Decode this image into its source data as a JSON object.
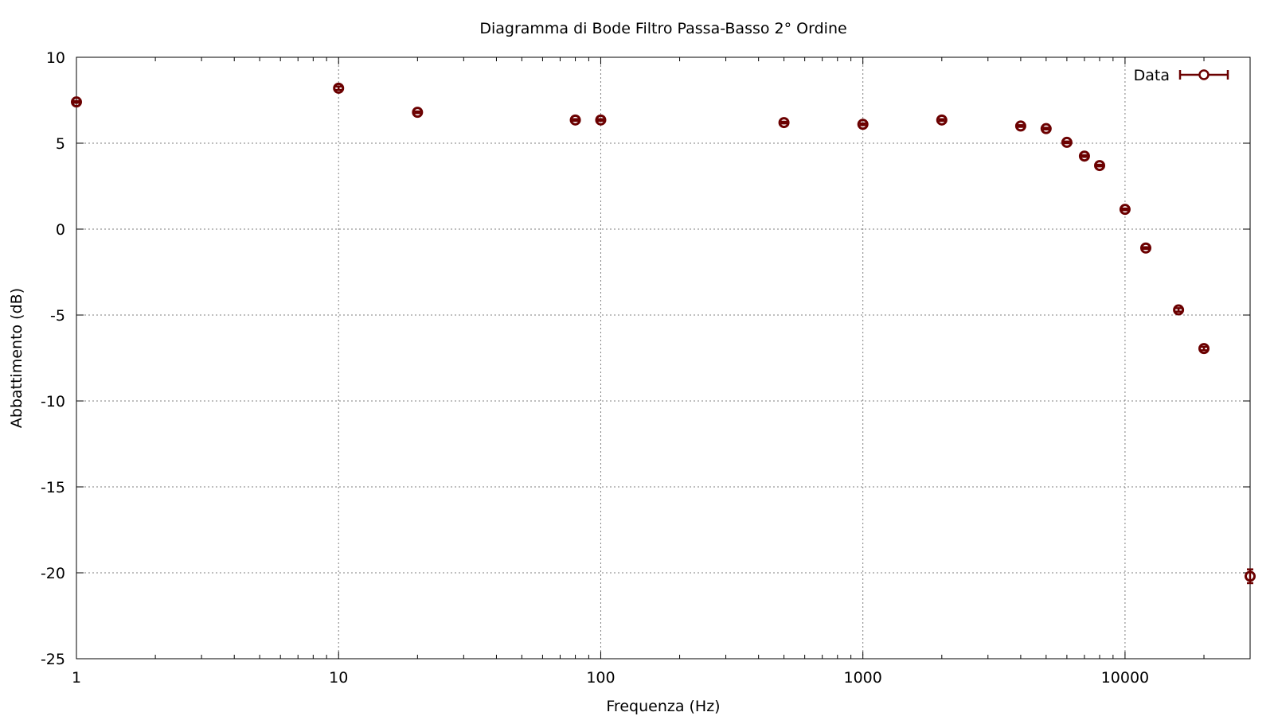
{
  "chart_data": {
    "type": "scatter",
    "title": "Diagramma di Bode Filtro Passa-Basso 2° Ordine",
    "xlabel": "Frequenza (Hz)",
    "ylabel": "Abbattimento (dB)",
    "xscale": "log",
    "xlim": [
      1,
      30000
    ],
    "ylim": [
      -25,
      10
    ],
    "xticks": [
      1,
      10,
      100,
      1000,
      10000
    ],
    "xtick_labels": [
      "1",
      "10",
      "100",
      "1000",
      "10000"
    ],
    "yticks": [
      -25,
      -20,
      -15,
      -10,
      -5,
      0,
      5,
      10
    ],
    "ytick_labels": [
      "-25",
      "-20",
      "-15",
      "-10",
      "-5",
      "0",
      "5",
      "10"
    ],
    "grid": true,
    "legend_position": "top-right",
    "color": "#6b0000",
    "series": [
      {
        "name": "Data",
        "style": "points-with-errorbars",
        "x": [
          1,
          10,
          20,
          80,
          100,
          500,
          1000,
          2000,
          4000,
          5000,
          6000,
          7000,
          8000,
          10000,
          12000,
          16000,
          20000,
          30000
        ],
        "y": [
          7.4,
          8.2,
          6.8,
          6.35,
          6.35,
          6.2,
          6.1,
          6.35,
          6.0,
          5.85,
          5.05,
          4.25,
          3.7,
          1.15,
          -1.1,
          -4.7,
          -6.95,
          -20.2
        ],
        "yerr": [
          0.05,
          0.1,
          0.05,
          0.05,
          0.05,
          0.05,
          0.05,
          0.05,
          0.05,
          0.05,
          0.05,
          0.05,
          0.05,
          0.05,
          0.05,
          0.1,
          0.1,
          0.4
        ]
      }
    ]
  }
}
